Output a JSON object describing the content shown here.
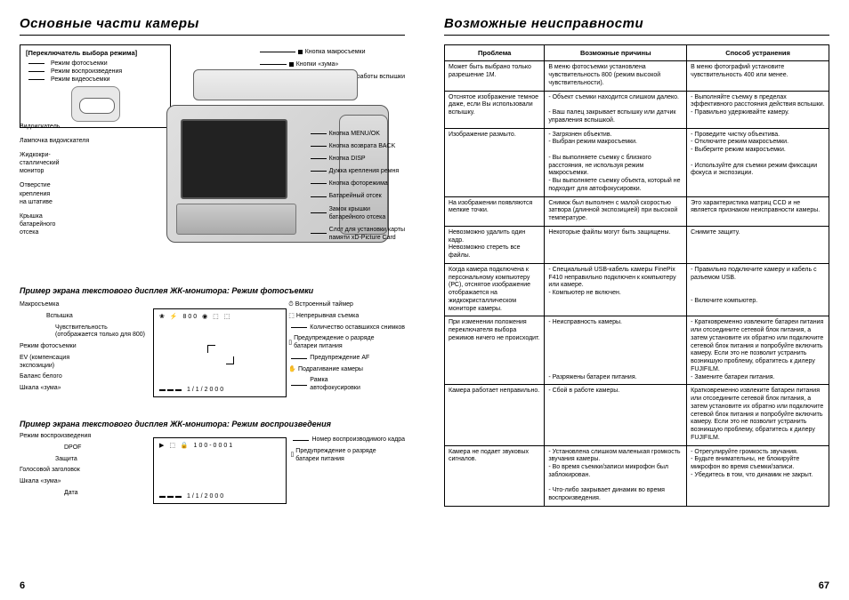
{
  "left": {
    "title": "Основные части камеры",
    "mode_switch": {
      "header": "[Переключатель выбора режима]",
      "photo": "Режим фотосъемки",
      "playback": "Режим воспроизведения",
      "video": "Режим видеосъемки"
    },
    "top_right_labels": [
      "Кнопка макросъемки",
      "Кнопки «зума»",
      "Кнопка выбора режима работы вспышки"
    ],
    "left_body_labels": [
      "Видоискатель",
      "Лампочка видоискателя",
      "Жидкокри-\nсталлический\nмонитор",
      "Отверстие\nкрепления\nна штативе",
      "Крышка\nбатарейного\nотсека"
    ],
    "right_body_labels": [
      "Кнопка MENU/OK",
      "Кнопка возврата BACK",
      "Кнопка DISP",
      "Дужка крепления ремня",
      "Кнопка фоторежима",
      "Батарейный отсек",
      "Замок крышки\nбатарейного отсека",
      "Слот для установки карты\nпамяти xD-Picture Card"
    ],
    "sub1": "Пример экрана текстового дисплея ЖК-монитора: Режим фотосъемки",
    "lcd1_left": [
      "Макросъемка",
      "Вспышка",
      "Чувствительность\n(отображается только для 800)",
      "Режим фотосъемки",
      "EV (компенсация\nэкспозиции)",
      "Баланс белого",
      "Шкала «зума»"
    ],
    "lcd1_right": [
      "Встроенный таймер",
      "Непрерывная съемка",
      "Количество оставшихся снимков",
      "Предупреждение о разряде\nбатареи питания",
      "Предупреждение AF",
      "Подрагивание камеры",
      "Рамка\nавтофокусировки"
    ],
    "sub2": "Пример экрана текстового дисплея ЖК-монитора: Режим воспроизведения",
    "lcd2_left": [
      "Режим воспроизведения",
      "DPOF",
      "Защита",
      "Голосовой заголовок",
      "Шкала «зума»",
      "Дата"
    ],
    "lcd2_right": [
      "Номер воспроизводимого кадра",
      "Предупреждение о разряде\nбатареи питания"
    ],
    "page_num": "6"
  },
  "right": {
    "title": "Возможные неисправности",
    "headers": [
      "Проблема",
      "Возможные причины",
      "Способ устранения"
    ],
    "rows": [
      [
        "Может быть выбрано только разрешение 1М.",
        "В меню фотосъемки установлена чувствительность 800 (режим высокой чувствительности).",
        "В меню фотографий установите чувствительность 400 или менее."
      ],
      [
        "Отснятое изображение темное даже, если Вы использовали вспышку.",
        "- Объект съемки находится слишком далеко.\n\n- Ваш палец закрывает вспышку или датчик управления вспышкой.",
        "- Выполняйте съемку в пределах эффективного расстояния действия вспышки.\n- Правильно удерживайте камеру."
      ],
      [
        "Изображение размыто.",
        "- Загрязнен объектив.\n- Выбран режим макросъемки.\n\n- Вы выполняете съемку с близкого расстояния, не используя режим макросъемки.\n- Вы выполняете съемку объекта, который не подходит для автофокусировки.",
        "- Проведите чистку объектива.\n- Отключите режим макросъемки.\n- Выберите режим макросъемки.\n\n- Используйте для съемки режим фиксации фокуса и экспозиции."
      ],
      [
        "На изображении появляются мелкие точки.",
        "Снимок был выполнен с малой скоростью затвора (длинной экспозицией) при высокой температуре.",
        "Это характеристика матриц CCD и не является признаком неисправности камеры."
      ],
      [
        "Невозможно удалить один кадр.\nНевозможно стереть все файлы.",
        "Некоторые файлы могут быть защищены.",
        "Снимите защиту."
      ],
      [
        "Когда камера подключена к персональному компьютеру (РС), отснятое изображение отображается на жидкокристаллическом мониторе камеры.",
        "- Специальный USB-кабель камеры FinePix F410 неправильно подключен к компьютеру или камере.\n- Компьютер не включен.",
        "- Правильно подключите камеру и кабель с разъемом USB.\n\n\n- Включите компьютер."
      ],
      [
        "При изменении положения переключателя выбора режимов ничего не происходит.",
        "- Неисправность камеры.\n\n\n\n\n\n\n- Разряжены батареи питания.",
        "- Кратковременно извлеките батареи питания или отсоедините сетевой блок питания, а затем установите их обратно или подключите сетевой блок питания и попробуйте включить камеру. Если это не позволит устранить возникшую проблему, обратитесь к дилеру FUJIFILM.\n- Замените батареи питания."
      ],
      [
        "Камера работает неправильно.",
        "- Сбой в работе камеры.",
        "Кратковременно извлеките батареи питания или отсоедините сетевой блок питания, а затем установите их обратно или подключите сетевой блок питания и попробуйте включить камеру. Если это не позволит устранить возникшую проблему, обратитесь к дилеру FUJIFILM."
      ],
      [
        "Камера не подает звуковых сигналов.",
        "- Установлена слишком маленькая громкость звучания камеры.\n- Во время съемки/записи микрофон был заблокирован.\n\n- Что-либо закрывает динамик во время воспроизведения.",
        "- Отрегулируйте громкость звучания.\n- Будьте внимательны, не блокируйте микрофон во время съемки/записи.\n- Убедитесь в том, что динамик не закрыт."
      ]
    ],
    "page_num": "67"
  }
}
